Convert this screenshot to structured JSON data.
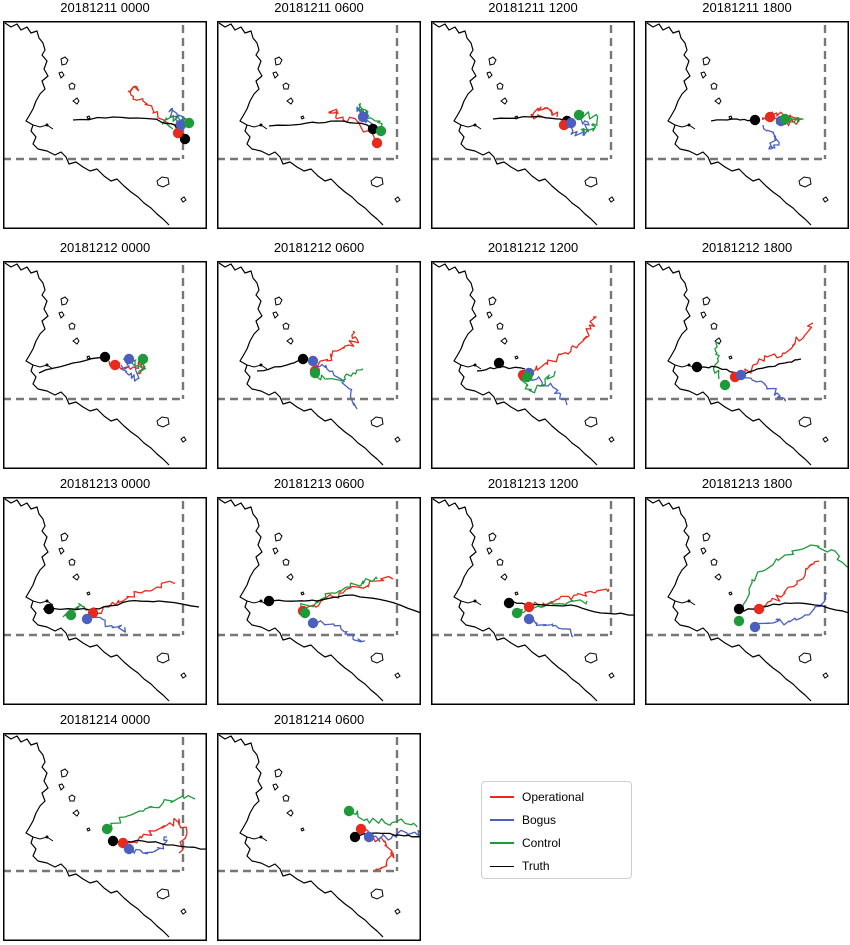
{
  "chart_data": {
    "type": "line",
    "colors": {
      "operational": "#e8291c",
      "bogus": "#4a5fbf",
      "control": "#1e9a3a",
      "truth": "#000000"
    },
    "legend": {
      "placement": "bottom-right",
      "entries": [
        {
          "key": "operational",
          "label": "Operational"
        },
        {
          "key": "bogus",
          "label": "Bogus"
        },
        {
          "key": "control",
          "label": "Control"
        },
        {
          "key": "truth",
          "label": "Truth"
        }
      ]
    },
    "panels": [
      {
        "title": "20181211 0000"
      },
      {
        "title": "20181211 0600"
      },
      {
        "title": "20181211 1200"
      },
      {
        "title": "20181211 1800"
      },
      {
        "title": "20181212 0000"
      },
      {
        "title": "20181212 0600"
      },
      {
        "title": "20181212 1200"
      },
      {
        "title": "20181212 1800"
      },
      {
        "title": "20181213 0000"
      },
      {
        "title": "20181213 0600"
      },
      {
        "title": "20181213 1200"
      },
      {
        "title": "20181213 1800"
      },
      {
        "title": "20181214 0000"
      },
      {
        "title": "20181214 0600"
      }
    ]
  }
}
